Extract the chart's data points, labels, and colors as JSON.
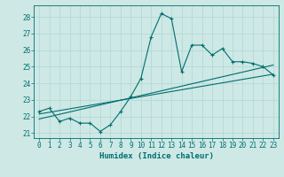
{
  "xlabel": "Humidex (Indice chaleur)",
  "xlim": [
    -0.5,
    23.5
  ],
  "ylim": [
    20.7,
    28.7
  ],
  "yticks": [
    21,
    22,
    23,
    24,
    25,
    26,
    27,
    28
  ],
  "xticks": [
    0,
    1,
    2,
    3,
    4,
    5,
    6,
    7,
    8,
    9,
    10,
    11,
    12,
    13,
    14,
    15,
    16,
    17,
    18,
    19,
    20,
    21,
    22,
    23
  ],
  "bg_color": "#cde8e5",
  "line_color": "#006e6e",
  "grid_color": "#b0d8d4",
  "main_line": [
    22.3,
    22.5,
    21.7,
    21.9,
    21.6,
    21.6,
    21.1,
    21.5,
    22.3,
    23.2,
    24.3,
    26.8,
    28.2,
    27.9,
    24.7,
    26.3,
    26.3,
    25.7,
    26.1,
    25.3,
    25.3,
    25.2,
    25.0,
    24.5
  ],
  "trend_line1": [
    [
      0,
      22.15
    ],
    [
      23,
      24.55
    ]
  ],
  "trend_line2": [
    [
      0,
      21.85
    ],
    [
      23,
      25.1
    ]
  ]
}
